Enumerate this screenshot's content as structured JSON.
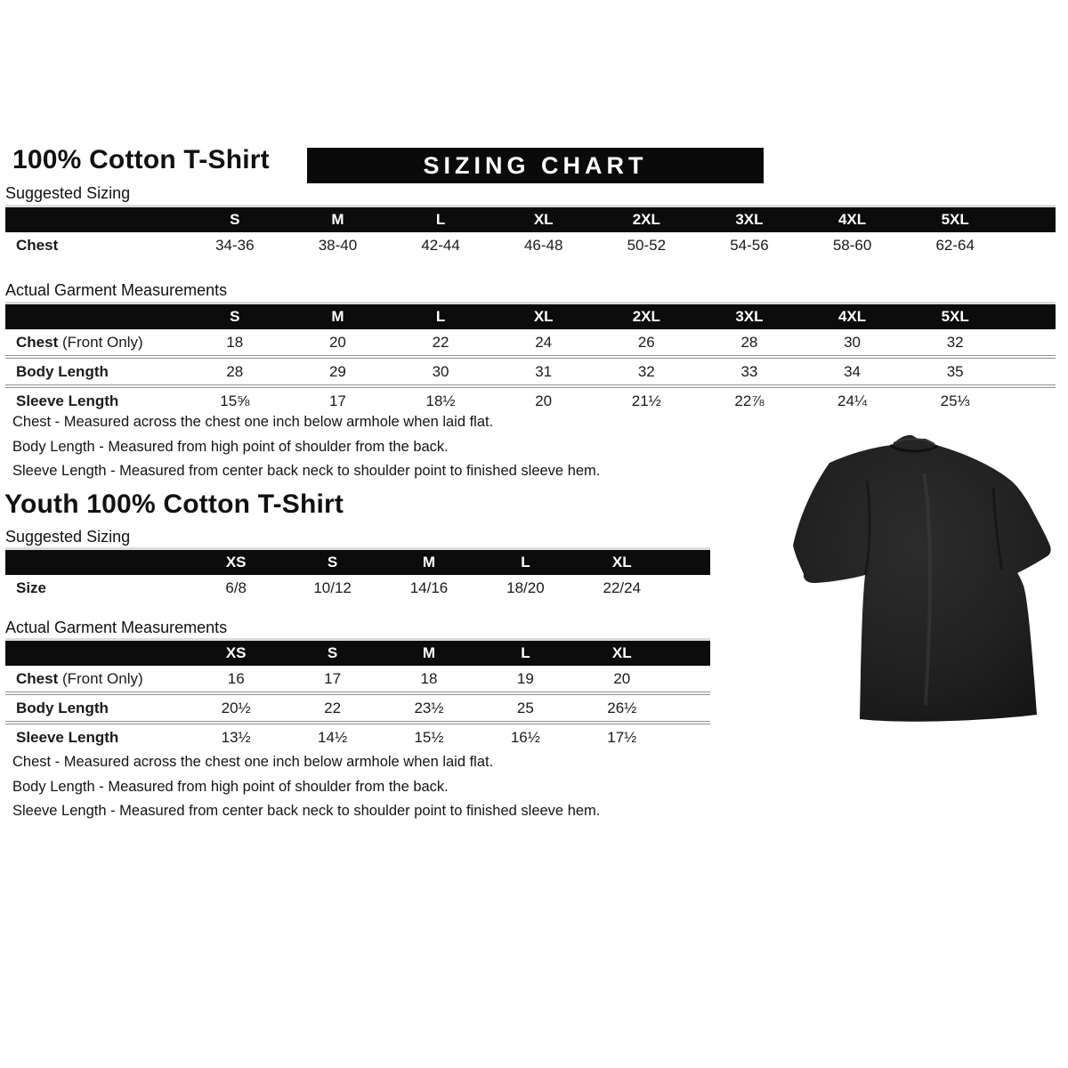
{
  "page": {
    "title": "100% Cotton T-Shirt",
    "banner": "SIZING CHART",
    "youth_title": "Youth 100% Cotton T-Shirt"
  },
  "adult": {
    "suggested": {
      "label": "Suggested Sizing",
      "columns": [
        "S",
        "M",
        "L",
        "XL",
        "2XL",
        "3XL",
        "4XL",
        "5XL"
      ],
      "rows": [
        {
          "label": "Chest",
          "label_suffix": "",
          "values": [
            "34-36",
            "38-40",
            "42-44",
            "46-48",
            "50-52",
            "54-56",
            "58-60",
            "62-64"
          ]
        }
      ]
    },
    "garment": {
      "label": "Actual Garment Measurements",
      "columns": [
        "S",
        "M",
        "L",
        "XL",
        "2XL",
        "3XL",
        "4XL",
        "5XL"
      ],
      "rows": [
        {
          "label": "Chest",
          "label_suffix": " (Front Only)",
          "values": [
            "18",
            "20",
            "22",
            "24",
            "26",
            "28",
            "30",
            "32"
          ]
        },
        {
          "label": "Body Length",
          "label_suffix": "",
          "values": [
            "28",
            "29",
            "30",
            "31",
            "32",
            "33",
            "34",
            "35"
          ]
        },
        {
          "label": "Sleeve Length",
          "label_suffix": "",
          "values": [
            "15⅝",
            "17",
            "18½",
            "20",
            "21½",
            "22⅞",
            "24¼",
            "25⅓"
          ]
        }
      ]
    },
    "notes": [
      "Chest - Measured across the chest one inch below armhole when laid flat.",
      "Body Length - Measured from high point of shoulder from the back.",
      "Sleeve Length - Measured from center back neck to shoulder point to finished sleeve hem."
    ]
  },
  "youth": {
    "suggested": {
      "label": "Suggested Sizing",
      "columns": [
        "XS",
        "S",
        "M",
        "L",
        "XL"
      ],
      "rows": [
        {
          "label": "Size",
          "label_suffix": "",
          "values": [
            "6/8",
            "10/12",
            "14/16",
            "18/20",
            "22/24"
          ]
        }
      ]
    },
    "garment": {
      "label": "Actual Garment Measurements",
      "columns": [
        "XS",
        "S",
        "M",
        "L",
        "XL"
      ],
      "rows": [
        {
          "label": "Chest",
          "label_suffix": " (Front Only)",
          "values": [
            "16",
            "17",
            "18",
            "19",
            "20"
          ]
        },
        {
          "label": "Body Length",
          "label_suffix": "",
          "values": [
            "20½",
            "22",
            "23½",
            "25",
            "26½"
          ]
        },
        {
          "label": "Sleeve Length",
          "label_suffix": "",
          "values": [
            "13½",
            "14½",
            "15½",
            "16½",
            "17½"
          ]
        }
      ]
    },
    "notes": [
      "Chest - Measured across the chest one inch below armhole when laid flat.",
      "Body Length - Measured from high point of shoulder from the back.",
      "Sleeve Length - Measured from center back neck to shoulder point to finished sleeve hem."
    ]
  },
  "tshirt_image": {
    "description": "black short-sleeve crew neck t-shirt",
    "color": "#1e1e1e"
  },
  "colors": {
    "banner_bg": "#0a0a0a",
    "table_header_bg": "#0c0c0c",
    "header_text": "#ffffff",
    "body_text": "#1a1a1a",
    "row_separator": "#8f8f8f"
  }
}
